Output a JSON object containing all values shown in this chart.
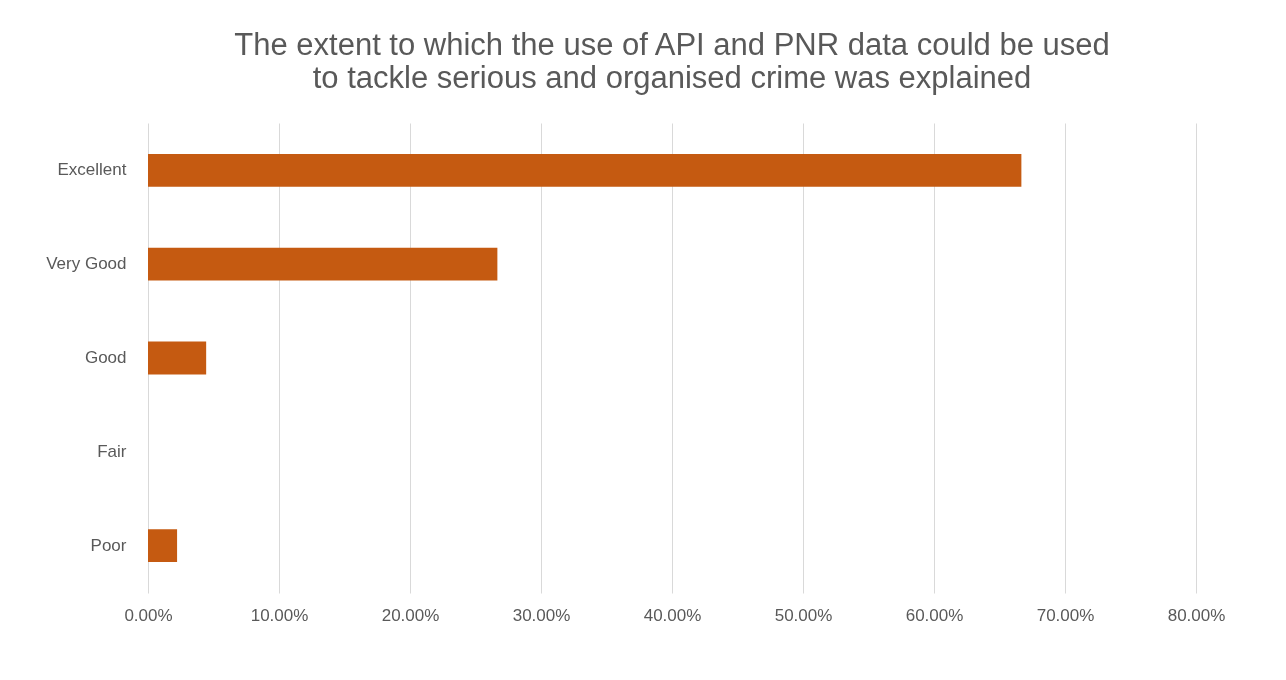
{
  "chart_data": {
    "type": "bar",
    "orientation": "horizontal",
    "title": [
      "The extent to which the use of API and PNR data could be used",
      "to tackle serious and organised crime was explained"
    ],
    "categories": [
      "Excellent",
      "Very Good",
      "Good",
      "Fair",
      "Poor"
    ],
    "values": [
      66.67,
      26.67,
      4.44,
      0,
      2.22
    ],
    "color": "#c55a11",
    "xlim": [
      0,
      80
    ],
    "xticks": [
      {
        "value": 0,
        "label": "0.00%"
      },
      {
        "value": 10,
        "label": "10.00%"
      },
      {
        "value": 20,
        "label": "20.00%"
      },
      {
        "value": 30,
        "label": "30.00%"
      },
      {
        "value": 40,
        "label": "40.00%"
      },
      {
        "value": 50,
        "label": "50.00%"
      },
      {
        "value": 60,
        "label": "60.00%"
      },
      {
        "value": 70,
        "label": "70.00%"
      },
      {
        "value": 80,
        "label": "80.00%"
      }
    ],
    "grid": "x"
  }
}
